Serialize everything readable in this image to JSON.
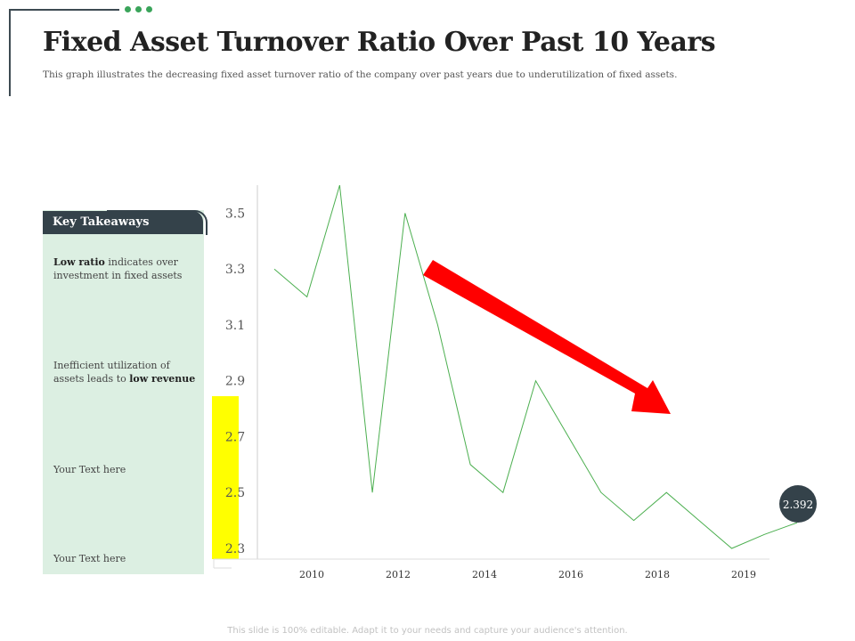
{
  "slide": {
    "title": "Fixed Asset Turnover Ratio Over Past 10 Years",
    "subtitle": "This graph illustrates the decreasing fixed asset turnover ratio of the company over past years due to underutilization  of fixed assets.",
    "footer": "This slide is 100% editable. Adapt it to your needs and capture your audience's attention."
  },
  "takeaways": {
    "header": "Key Takeaways",
    "items": [
      {
        "bold": "Low ratio",
        "line1_rest": " indicates over",
        "line2": "investment  in fixed  assets"
      },
      {
        "line1": "Inefficient  utilization  of",
        "line2_pre": "assets leads  to ",
        "line2_bold": "low revenue"
      },
      {
        "line1": "Your Text here"
      },
      {
        "line1": "Your Text here"
      }
    ]
  },
  "chart_data": {
    "type": "line",
    "title": "",
    "xlabel": "",
    "ylabel": "",
    "x_tick_labels": [
      "2010",
      "2012",
      "2014",
      "2016",
      "2018",
      "2019"
    ],
    "y_ticks": [
      "2.3",
      "2.5",
      "2.7",
      "2.9",
      "3.1",
      "3.3",
      "3.5"
    ],
    "ylim": [
      2.3,
      3.6
    ],
    "series": [
      {
        "values": [
          3.3,
          3.2,
          3.6,
          2.5,
          3.5,
          3.1,
          2.6,
          2.5,
          2.9,
          2.7,
          2.5,
          2.4,
          2.5,
          2.4,
          2.3,
          2.35,
          2.392
        ]
      }
    ],
    "last_value_label": "2.392",
    "line_color": "#4caf50",
    "arrow_color": "#ff0000",
    "badge_color": "#34424a",
    "highlight_color": "#ffff00",
    "grid": false
  }
}
